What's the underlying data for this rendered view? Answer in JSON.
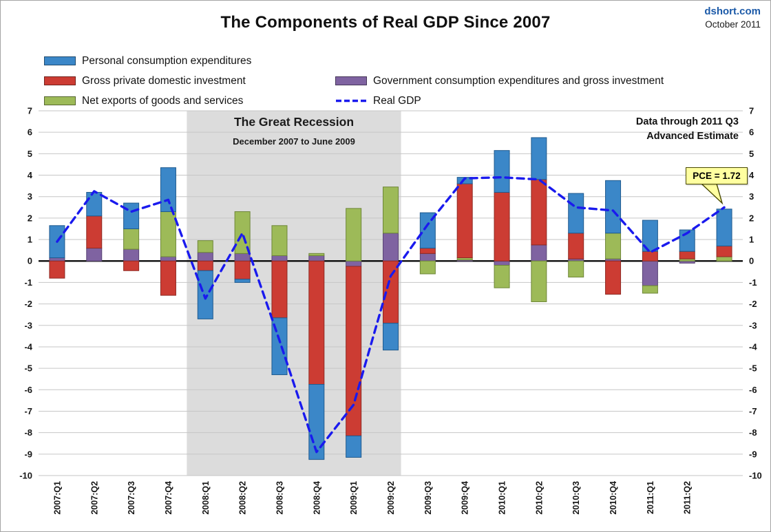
{
  "page": {
    "source": "dshort.com",
    "date": "October 2011",
    "title": "The Components of Real GDP Since 2007"
  },
  "legend": [
    {
      "label": "Personal consumption expenditures",
      "color": "#3b87c8"
    },
    {
      "label": "Gross private domestic investment",
      "color": "#cc3c33"
    },
    {
      "label": "Net exports of goods and services",
      "color": "#9dba58"
    },
    {
      "label": "Government consumption expenditures and gross investment",
      "color": "#7f63a1"
    },
    {
      "label": "Real GDP",
      "color": "#1a1aee"
    }
  ],
  "annotations": {
    "recession_title": "The Great Recession",
    "recession_subtitle": "December 2007 to June 2009",
    "data_note_line1": "Data through 2011 Q3",
    "data_note_line2": "Advanced Estimate",
    "callout": "PCE = 1.72"
  },
  "chart_data": {
    "type": "bar",
    "subtype": "stacked-columns-with-line",
    "title": "The Components of Real GDP Since 2007",
    "xlabel": "",
    "ylabel": "",
    "ylim": [
      -10,
      7
    ],
    "yticks": [
      7,
      6,
      5,
      4,
      3,
      2,
      1,
      0,
      -1,
      -2,
      -3,
      -4,
      -5,
      -6,
      -7,
      -8,
      -9,
      -10
    ],
    "grid": true,
    "legend_position": "top-left",
    "xlabels_visible": 18,
    "categories": [
      "2007:Q1",
      "2007:Q2",
      "2007:Q3",
      "2007:Q4",
      "2008:Q1",
      "2008:Q2",
      "2008:Q3",
      "2008:Q4",
      "2009:Q1",
      "2009:Q2",
      "2009:Q3",
      "2009:Q4",
      "2010:Q1",
      "2010:Q2",
      "2010:Q3",
      "2010:Q4",
      "2011:Q1",
      "2011:Q2",
      "2011:Q3"
    ],
    "series": [
      {
        "name": "Government consumption expenditures and gross investment",
        "color": "#7f63a1",
        "border": "#594474",
        "values": [
          0.15,
          0.6,
          0.55,
          0.2,
          0.4,
          0.35,
          0.25,
          0.25,
          -0.25,
          1.3,
          0.35,
          0.05,
          -0.2,
          0.75,
          0.1,
          0.1,
          -1.15,
          -0.1,
          0.0
        ]
      },
      {
        "name": "Net exports of goods and services",
        "color": "#9dba58",
        "border": "#6e8638",
        "values": [
          0.0,
          0.0,
          0.95,
          2.1,
          0.55,
          1.95,
          1.4,
          0.1,
          2.45,
          2.15,
          -0.6,
          0.1,
          -1.05,
          -1.9,
          -0.75,
          1.2,
          -0.35,
          0.1,
          0.2
        ]
      },
      {
        "name": "Gross private domestic investment",
        "color": "#cc3c33",
        "border": "#8e2a23",
        "values": [
          -0.8,
          1.5,
          -0.45,
          -1.6,
          -0.45,
          -0.85,
          -2.65,
          -5.75,
          -7.9,
          -2.9,
          0.25,
          3.45,
          3.2,
          3.05,
          1.2,
          -1.55,
          0.45,
          0.35,
          0.5
        ]
      },
      {
        "name": "Personal consumption expenditures",
        "color": "#3b87c8",
        "border": "#1f5a8e",
        "values": [
          1.5,
          1.1,
          1.2,
          2.05,
          -2.25,
          -0.15,
          -2.65,
          -3.5,
          -1.0,
          -1.25,
          1.65,
          0.3,
          1.95,
          1.95,
          1.85,
          2.45,
          1.45,
          1.0,
          1.72
        ]
      }
    ],
    "line_series": {
      "name": "Real GDP",
      "color": "#1a1aee",
      "dashed": true,
      "values": [
        0.9,
        3.25,
        2.3,
        2.85,
        -1.75,
        1.3,
        -3.7,
        -8.9,
        -6.7,
        -0.7,
        1.7,
        3.85,
        3.9,
        3.8,
        2.5,
        2.35,
        0.4,
        1.3,
        2.5
      ]
    },
    "recession_band": {
      "from_index": 4,
      "to_index": 9,
      "color": "#dcdcdc"
    },
    "callout_value": 1.72
  }
}
